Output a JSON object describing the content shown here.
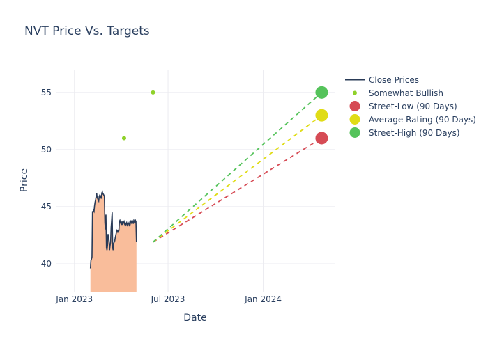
{
  "chart_data": {
    "type": "line",
    "title": "NVT Price Vs. Targets",
    "xlabel": "Date",
    "ylabel": "Price",
    "x_ticks": [
      {
        "label": "Jan 2023",
        "day": 0
      },
      {
        "label": "Jul 2023",
        "day": 181
      },
      {
        "label": "Jan 2024",
        "day": 365
      }
    ],
    "y_ticks": [
      40,
      45,
      50,
      55
    ],
    "xlim_days": [
      -36,
      503
    ],
    "ylim": [
      37.5,
      57
    ],
    "close_prices": {
      "name": "Close Prices",
      "days": [
        31,
        32,
        33,
        34,
        35,
        36,
        37,
        38,
        39,
        40,
        41,
        42,
        43,
        44,
        45,
        46,
        47,
        48,
        49,
        50,
        51,
        52,
        53,
        54,
        55,
        56,
        57,
        58,
        59,
        60,
        61,
        62,
        63,
        64,
        65,
        66,
        67,
        68,
        69,
        70,
        71,
        72,
        73,
        74,
        75,
        76,
        77,
        78,
        79,
        80,
        81,
        82,
        83,
        84,
        85,
        86,
        87,
        88,
        89,
        90,
        91,
        92,
        93,
        94,
        95,
        96,
        97,
        98,
        99,
        100,
        101,
        102,
        103,
        104,
        105,
        106,
        107,
        108,
        109,
        110,
        111,
        112,
        113,
        114,
        115,
        116,
        117,
        118,
        119,
        120
      ],
      "values": [
        39.6,
        40.3,
        40.4,
        40.6,
        44.6,
        44.5,
        44.7,
        44.6,
        45.1,
        45.4,
        45.6,
        45.9,
        46.2,
        45.8,
        45.7,
        45.6,
        45.5,
        45.9,
        46.0,
        45.8,
        45.9,
        45.7,
        46.2,
        46.3,
        46.1,
        46.1,
        46.0,
        45.9,
        43.6,
        43.0,
        44.3,
        41.4,
        41.2,
        41.6,
        42.6,
        42.4,
        42.0,
        41.2,
        41.6,
        41.9,
        43.2,
        43.8,
        44.5,
        41.4,
        41.2,
        41.8,
        41.9,
        42.0,
        42.3,
        42.5,
        42.7,
        42.9,
        42.8,
        42.9,
        42.8,
        42.9,
        43.7,
        43.8,
        43.6,
        43.5,
        43.6,
        43.4,
        43.7,
        43.5,
        43.6,
        43.7,
        43.5,
        43.6,
        43.4,
        43.5,
        43.6,
        43.4,
        43.5,
        43.6,
        43.5,
        43.4,
        43.6,
        43.5,
        43.7,
        43.6,
        43.8,
        43.6,
        43.7,
        43.5,
        43.8,
        43.7,
        43.6,
        43.8,
        43.7,
        41.9
      ]
    },
    "somewhat_bullish": {
      "name": "Somewhat Bullish",
      "points": [
        {
          "day": 96,
          "value": 51
        },
        {
          "day": 152,
          "value": 55
        }
      ]
    },
    "targets": [
      {
        "name": "Street-Low (90 Days)",
        "value": 51,
        "color": "#d64b55"
      },
      {
        "name": "Average Rating (90 Days)",
        "value": 53,
        "color": "#e0dc16"
      },
      {
        "name": "Street-High (90 Days)",
        "value": 55,
        "color": "#55c35b"
      }
    ],
    "projection": {
      "start_day": 152,
      "start_value": 41.9,
      "end_day": 478
    },
    "colors": {
      "close_line": "#2a3b57",
      "area_fill": "#f9bd9b",
      "bullish": "#8fd12a"
    }
  },
  "legend": {
    "items": [
      {
        "label": "Close Prices"
      },
      {
        "label": "Somewhat Bullish"
      },
      {
        "label": "Street-Low (90 Days)"
      },
      {
        "label": "Average Rating (90 Days)"
      },
      {
        "label": "Street-High (90 Days)"
      }
    ]
  }
}
